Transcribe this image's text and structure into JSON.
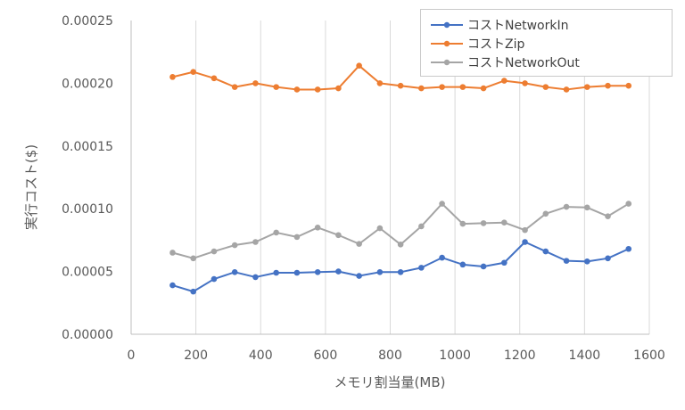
{
  "chart_data": {
    "type": "line",
    "title": "",
    "xlabel": "メモリ割当量(MB)",
    "ylabel": "実行コスト($)",
    "xlim": [
      0,
      1600
    ],
    "ylim": [
      0,
      0.00025
    ],
    "x_ticks": [
      "0",
      "200",
      "400",
      "600",
      "800",
      "1000",
      "1200",
      "1400",
      "1600"
    ],
    "y_ticks": [
      "0.00000",
      "0.00005",
      "0.00010",
      "0.00015",
      "0.00020",
      "0.00025"
    ],
    "grid": "vertical",
    "legend_position": "top-right",
    "x": [
      128,
      192,
      256,
      320,
      384,
      448,
      512,
      576,
      640,
      704,
      768,
      832,
      896,
      960,
      1024,
      1088,
      1152,
      1216,
      1280,
      1344,
      1408,
      1472,
      1536
    ],
    "series": [
      {
        "name": "コストNetworkIn",
        "color": "#4472C4",
        "values": [
          3.9e-05,
          3.4e-05,
          4.4e-05,
          4.95e-05,
          4.55e-05,
          4.9e-05,
          4.9e-05,
          4.95e-05,
          5e-05,
          4.65e-05,
          4.95e-05,
          4.95e-05,
          5.3e-05,
          6.1e-05,
          5.55e-05,
          5.4e-05,
          5.7e-05,
          7.35e-05,
          6.6e-05,
          5.85e-05,
          5.8e-05,
          6.05e-05,
          6.8e-05
        ]
      },
      {
        "name": "コストZip",
        "color": "#ED7D31",
        "values": [
          0.000205,
          0.000209,
          0.000204,
          0.000197,
          0.0002,
          0.000197,
          0.000195,
          0.000195,
          0.000196,
          0.000214,
          0.0002,
          0.000198,
          0.000196,
          0.000197,
          0.000197,
          0.000196,
          0.000202,
          0.0002,
          0.000197,
          0.000195,
          0.000197,
          0.000198,
          0.000198
        ]
      },
      {
        "name": "コストNetworkOut",
        "color": "#A5A5A5",
        "values": [
          6.5e-05,
          6.05e-05,
          6.6e-05,
          7.1e-05,
          7.35e-05,
          8.1e-05,
          7.75e-05,
          8.5e-05,
          7.9e-05,
          7.2e-05,
          8.45e-05,
          7.15e-05,
          8.6e-05,
          0.000104,
          8.8e-05,
          8.85e-05,
          8.9e-05,
          8.3e-05,
          9.6e-05,
          0.0001015,
          0.000101,
          9.4e-05,
          0.000104
        ]
      }
    ]
  }
}
